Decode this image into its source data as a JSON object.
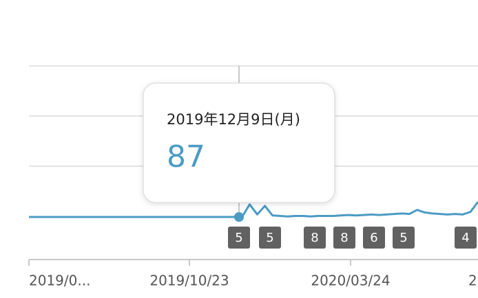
{
  "chart_data": {
    "type": "line",
    "series": [
      {
        "color": "#4b9bc4",
        "values": [
          0,
          0,
          0,
          0,
          0,
          0,
          0,
          0,
          0,
          0,
          0,
          0,
          0,
          0,
          0,
          0,
          0,
          0,
          0,
          0,
          0,
          0,
          0,
          0,
          0,
          0,
          0,
          0,
          0,
          25,
          5,
          22,
          3,
          2,
          1,
          2,
          2,
          1,
          2,
          2,
          2,
          3,
          4,
          3,
          4,
          5,
          4,
          5,
          6,
          7,
          6,
          14,
          9,
          7,
          6,
          5,
          6,
          5,
          10,
          30
        ]
      }
    ],
    "ylim": [
      0,
      300
    ],
    "x_labels": [
      "2019/0...",
      "2019/10/23",
      "2020/03/24",
      "2"
    ],
    "annotations": [
      "5",
      "5",
      "8",
      "8",
      "6",
      "5",
      "4"
    ],
    "tooltip": {
      "date": "2019年12月9日(月)",
      "value": 87
    }
  }
}
